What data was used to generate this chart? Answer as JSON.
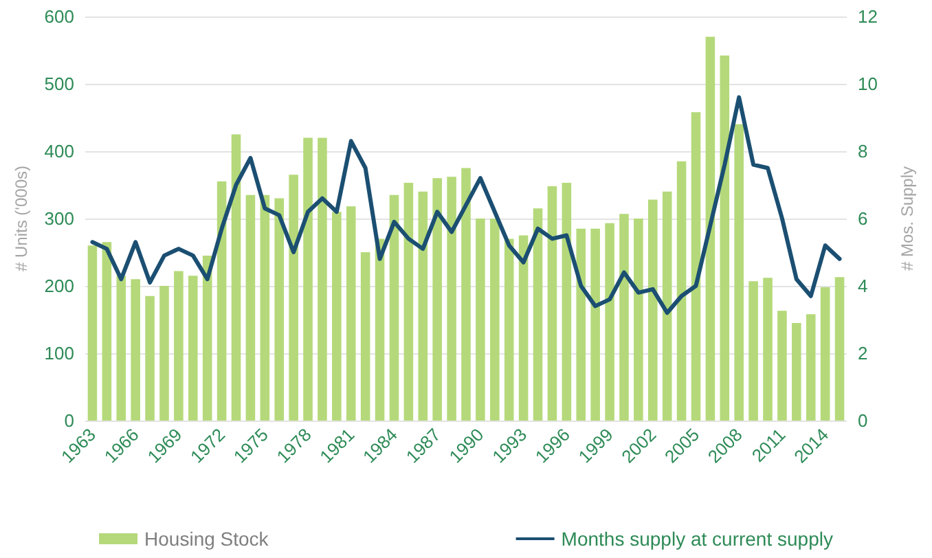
{
  "chart_data": {
    "type": "bar",
    "categories": [
      "1963",
      null,
      null,
      "1966",
      null,
      null,
      "1969",
      null,
      null,
      "1972",
      null,
      null,
      "1975",
      null,
      null,
      "1978",
      null,
      null,
      "1981",
      null,
      null,
      "1984",
      null,
      null,
      "1987",
      null,
      null,
      "1990",
      null,
      null,
      "1993",
      null,
      null,
      "1996",
      null,
      null,
      "1999",
      null,
      null,
      "2002",
      null,
      null,
      "2005",
      null,
      null,
      "2008",
      null,
      null,
      "2011",
      null,
      null,
      "2014",
      null
    ],
    "series": [
      {
        "name": "Housing Stock",
        "color": "#b5d97a",
        "values": [
          260,
          265,
          215,
          210,
          185,
          200,
          222,
          215,
          245,
          355,
          425,
          335,
          335,
          330,
          365,
          420,
          420,
          310,
          318,
          250,
          270,
          335,
          353,
          340,
          360,
          362,
          375,
          300,
          300,
          270,
          275,
          315,
          348,
          353,
          285,
          285,
          293,
          307,
          300,
          328,
          340,
          385,
          458,
          570,
          542,
          440,
          207,
          212,
          163,
          145,
          158,
          198,
          213
        ]
      },
      {
        "name": "Months supply at current supply",
        "type": "line",
        "axis": "y2",
        "color": "#1b4f72",
        "values": [
          5.3,
          5.1,
          4.2,
          5.3,
          4.1,
          4.9,
          5.1,
          4.9,
          4.2,
          5.7,
          7.0,
          7.8,
          6.3,
          6.1,
          5.0,
          6.2,
          6.6,
          6.2,
          8.3,
          7.5,
          4.8,
          5.9,
          5.4,
          5.1,
          6.2,
          5.6,
          6.4,
          7.2,
          6.2,
          5.2,
          4.7,
          5.7,
          5.4,
          5.5,
          4.0,
          3.4,
          3.6,
          4.4,
          3.8,
          3.9,
          3.2,
          3.7,
          4.0,
          5.8,
          7.6,
          9.6,
          7.6,
          7.5,
          6.0,
          4.2,
          3.7,
          5.2,
          4.8
        ]
      }
    ],
    "ylabel": "# Units ('000s)",
    "y2label": "# Mos. Supply",
    "ylim": [
      0,
      600
    ],
    "yticks": [
      0,
      100,
      200,
      300,
      400,
      500,
      600
    ],
    "y2lim": [
      0,
      12
    ],
    "y2ticks": [
      0,
      2,
      4,
      6,
      8,
      10,
      12
    ],
    "grid": "y",
    "legend": "bottom",
    "marker": "none",
    "line_style": "solid"
  }
}
